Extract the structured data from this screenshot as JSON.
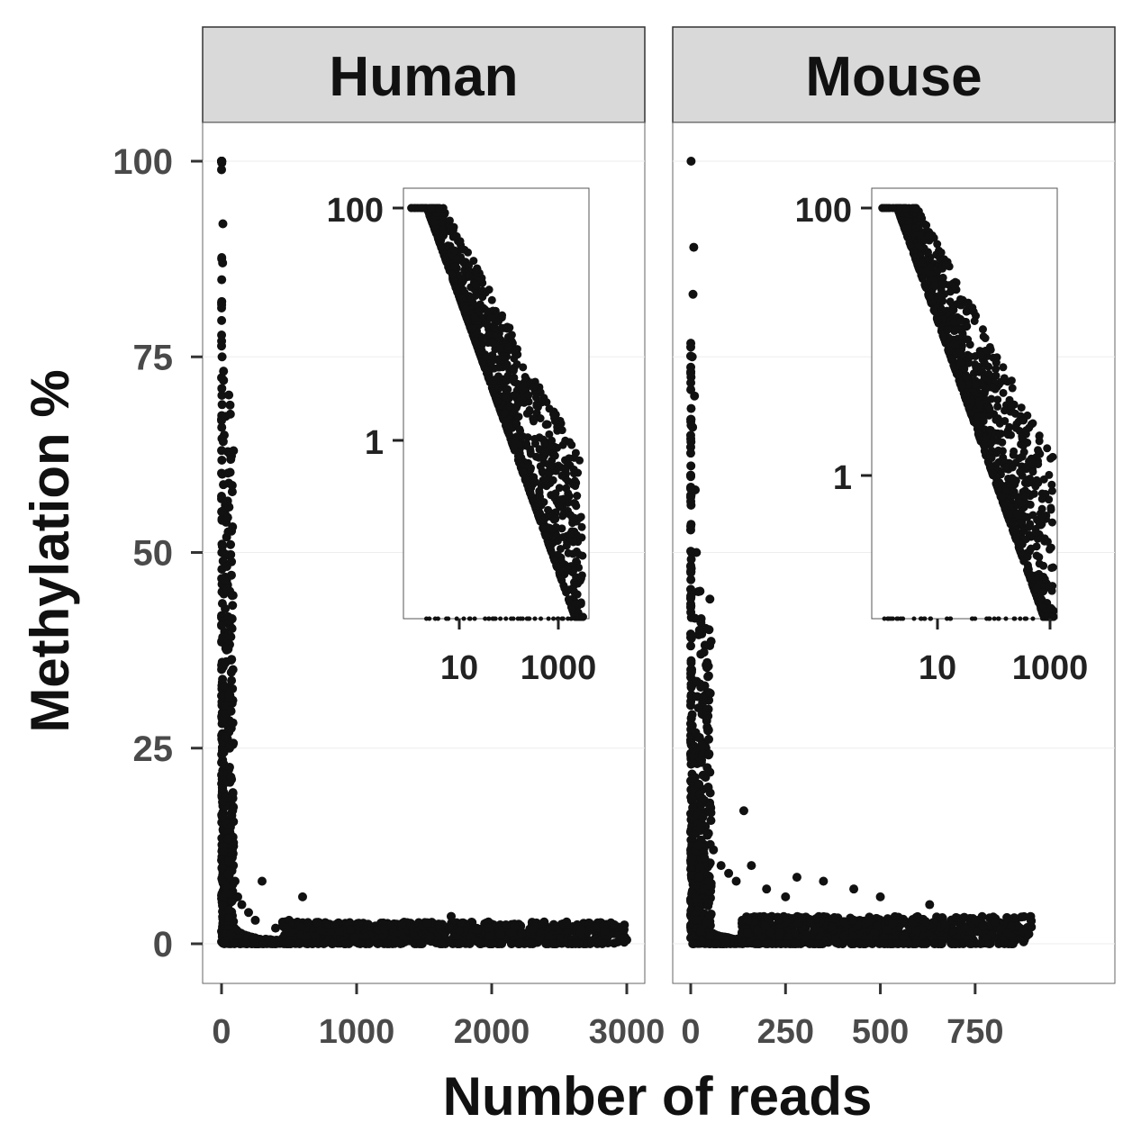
{
  "chart_data": [
    {
      "type": "scatter",
      "panel": "Human",
      "xlabel": "Number of reads",
      "ylabel": "Methylation %",
      "xlim": [
        0,
        3000
      ],
      "ylim": [
        0,
        100
      ],
      "x_ticks": [
        "0",
        "1000",
        "2000",
        "3000"
      ],
      "y_ticks": [
        "0",
        "25",
        "50",
        "75",
        "100"
      ],
      "series": [
        {
          "x": [
            1,
            2,
            3,
            4,
            5,
            8,
            10,
            15,
            20,
            25,
            30,
            40,
            50,
            60,
            70,
            80,
            100,
            120,
            150,
            200,
            250,
            300,
            400,
            500,
            600,
            700,
            800,
            900,
            1000,
            1200,
            1400,
            1700,
            2000,
            2200,
            2500,
            2700,
            3000
          ],
          "y": [
            100,
            50,
            33,
            75,
            60,
            87,
            92,
            72,
            65,
            55,
            45,
            38,
            30,
            25,
            18,
            12,
            8,
            6,
            5,
            4,
            3,
            8,
            2,
            3,
            6,
            2,
            2.5,
            1.5,
            2.5,
            1.5,
            2.5,
            3.5,
            1.2,
            2.5,
            1,
            0.8,
            0.5
          ],
          "color": "#111111"
        }
      ],
      "inset": {
        "x_scale": "log",
        "y_scale": "log",
        "x_ticks": [
          "10",
          "1000"
        ],
        "y_ticks": [
          "1",
          "100"
        ]
      }
    },
    {
      "type": "scatter",
      "panel": "Mouse",
      "xlabel": "Number of reads",
      "ylabel": "Methylation %",
      "xlim": [
        0,
        900
      ],
      "ylim": [
        0,
        100
      ],
      "x_ticks": [
        "0",
        "250",
        "500",
        "750"
      ],
      "y_ticks": [
        "0",
        "25",
        "50",
        "75",
        "100"
      ],
      "series": [
        {
          "x": [
            1,
            2,
            3,
            4,
            5,
            6,
            8,
            10,
            12,
            15,
            20,
            25,
            30,
            35,
            40,
            50,
            60,
            80,
            100,
            120,
            140,
            160,
            200,
            250,
            280,
            350,
            430,
            500,
            630,
            700,
            800,
            850,
            880
          ],
          "y": [
            100,
            50,
            33,
            75,
            66,
            83,
            89,
            70,
            58,
            50,
            45,
            40,
            33,
            30,
            25,
            18,
            12,
            10,
            9,
            8,
            17,
            10,
            7,
            6,
            8.5,
            8,
            7,
            6,
            5,
            3,
            2,
            1.5,
            0.5
          ],
          "color": "#111111"
        }
      ],
      "inset": {
        "x_scale": "log",
        "y_scale": "log",
        "x_ticks": [
          "10",
          "1000"
        ],
        "y_ticks": [
          "1",
          "100"
        ]
      }
    }
  ],
  "panels": {
    "human_label": "Human",
    "mouse_label": "Mouse"
  },
  "axes": {
    "x_title": "Number of reads",
    "y_title": "Methylation %"
  },
  "colors": {
    "strip_bg": "#d9d9d9",
    "points": "#111111",
    "grid": "#ededed"
  }
}
